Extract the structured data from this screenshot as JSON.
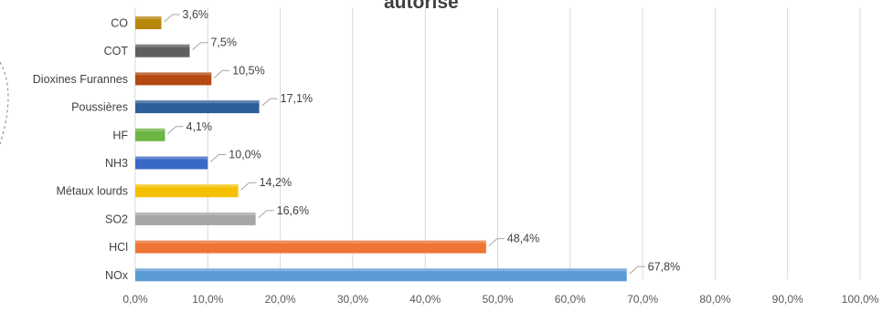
{
  "chart_data": {
    "type": "bar",
    "orientation": "horizontal",
    "title": "autorisé",
    "categories": [
      "CO",
      "COT",
      "Dioxines Furannes",
      "Poussières",
      "HF",
      "NH3",
      "Métaux lourds",
      "SO2",
      "HCl",
      "NOx"
    ],
    "values": [
      3.6,
      7.5,
      10.5,
      17.1,
      4.1,
      10.0,
      14.2,
      16.6,
      48.4,
      67.8
    ],
    "data_labels": [
      "3,6%",
      "7,5%",
      "10,5%",
      "17,1%",
      "4,1%",
      "10,0%",
      "14,2%",
      "16,6%",
      "48,4%",
      "67,8%"
    ],
    "colors": [
      "#b8860b",
      "#5f5f5f",
      "#b5490f",
      "#2f5f9a",
      "#6fb545",
      "#3a68c6",
      "#f5c000",
      "#a6a6a6",
      "#ee7434",
      "#5b9bd5"
    ],
    "xlim": [
      0,
      100
    ],
    "xticks": [
      "0,0%",
      "10,0%",
      "20,0%",
      "30,0%",
      "40,0%",
      "50,0%",
      "60,0%",
      "70,0%",
      "80,0%",
      "90,0%",
      "100,0%"
    ],
    "grid": true,
    "legend": "none"
  }
}
